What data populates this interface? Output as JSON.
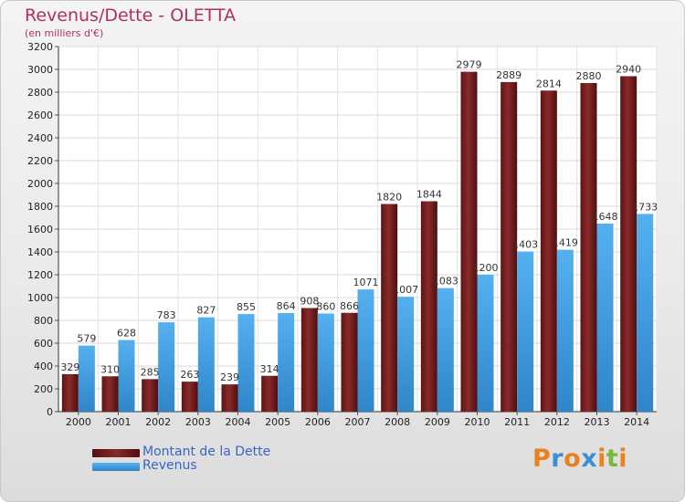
{
  "header": {
    "title": "Revenus/Dette - OLETTA",
    "subtitle": "(en milliers d'€)"
  },
  "chart_data": {
    "type": "bar",
    "categories": [
      "2000",
      "2001",
      "2002",
      "2003",
      "2004",
      "2005",
      "2006",
      "2007",
      "2008",
      "2009",
      "2010",
      "2011",
      "2012",
      "2013",
      "2014"
    ],
    "series": [
      {
        "name": "Montant de la Dette",
        "color": "#7a1f1f",
        "values": [
          329,
          310,
          285,
          263,
          239,
          314,
          908,
          866,
          1820,
          1844,
          2979,
          2889,
          2814,
          2880,
          2940
        ],
        "labels": [
          "329",
          "310",
          "285",
          "263",
          "239",
          "314",
          "908",
          "866",
          "1820",
          "1844",
          "2979",
          "2889",
          "2814",
          "2880",
          "2940"
        ]
      },
      {
        "name": "Revenus",
        "color": "#3c9be0",
        "values": [
          579,
          628,
          783,
          827,
          855,
          864,
          860,
          1071,
          1007,
          1083,
          1200,
          1403,
          1419,
          1648,
          1733
        ],
        "labels": [
          "579",
          "628",
          "783",
          "827",
          "855",
          "864",
          "860",
          "1071",
          "1007",
          "1083",
          "1200",
          "1403",
          "1419",
          "1648",
          "1733"
        ]
      }
    ],
    "ylim": [
      0,
      3200
    ],
    "yticks": [
      0,
      200,
      400,
      600,
      800,
      1000,
      1200,
      1400,
      1600,
      1800,
      2000,
      2200,
      2400,
      2600,
      2800,
      3000,
      3200
    ],
    "grid": true,
    "legend": "bottom-left"
  },
  "legend": {
    "items": [
      {
        "label": "Montant de la Dette",
        "color": "#7a1f1f"
      },
      {
        "label": "Revenus",
        "color": "#3c9be0"
      }
    ]
  },
  "logo": {
    "text": "Proxiti",
    "letters": [
      {
        "ch": "P",
        "color": "#e8821e"
      },
      {
        "ch": "r",
        "color": "#3b8fd6"
      },
      {
        "ch": "o",
        "color": "#e8821e"
      },
      {
        "ch": "x",
        "color": "#3b8fd6"
      },
      {
        "ch": "i",
        "color": "#e8821e"
      },
      {
        "ch": "t",
        "color": "#7ab83c"
      },
      {
        "ch": "i",
        "color": "#e8821e"
      }
    ]
  }
}
